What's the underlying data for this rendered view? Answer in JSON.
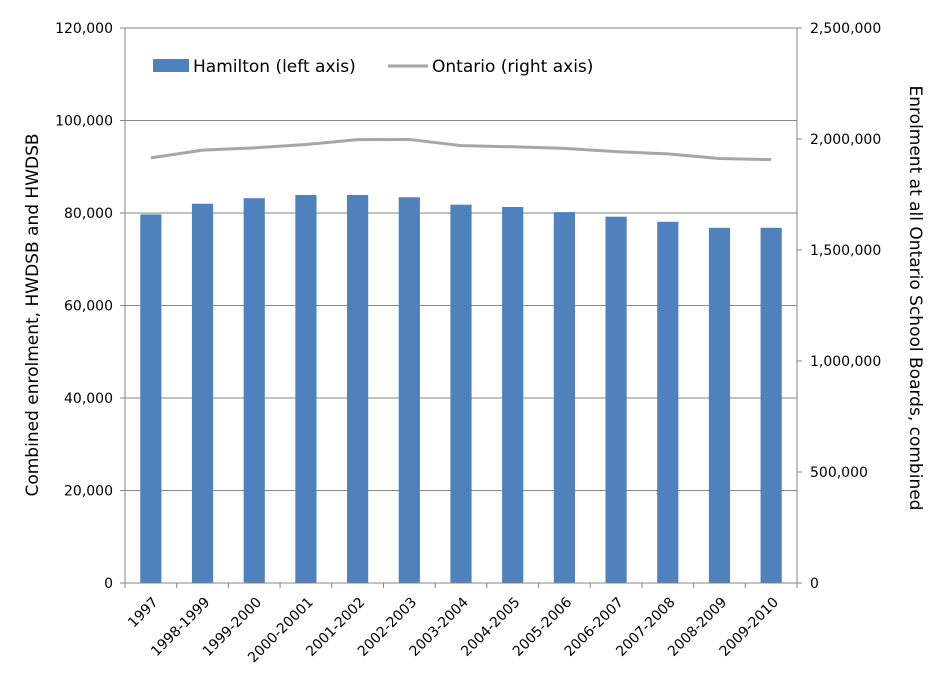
{
  "chart_data": {
    "type": "bar",
    "categories": [
      "1997",
      "1998-1999",
      "1999-2000",
      "2000-20001",
      "2001-2002",
      "2002-2003",
      "2003-2004",
      "2004-2005",
      "2005-2006",
      "2006-2007",
      "2007-2008",
      "2008-2009",
      "2009-2010"
    ],
    "series": [
      {
        "name": "Hamilton (left axis)",
        "type": "bar",
        "axis": "left",
        "color": "#4f81bd",
        "values": [
          79700,
          82000,
          83200,
          83900,
          83900,
          83400,
          81800,
          81300,
          80200,
          79200,
          78100,
          76800,
          76800
        ]
      },
      {
        "name": "Ontario (right axis)",
        "type": "line",
        "axis": "right",
        "color": "#a6a6a6",
        "values": [
          1915000,
          1950000,
          1960000,
          1975000,
          1997000,
          1998000,
          1970000,
          1965000,
          1958000,
          1943000,
          1933000,
          1912000,
          1907000
        ]
      }
    ],
    "ylabel": "Combined enrolment, HWDSB and HWDSB",
    "y2label": "Enrolment at all Ontario School Boards, combined",
    "ylim": [
      0,
      120000
    ],
    "y2lim": [
      0,
      2500000
    ],
    "yticks": [
      "0",
      "20,000",
      "40,000",
      "60,000",
      "80,000",
      "100,000",
      "120,000"
    ],
    "y2ticks": [
      "0",
      "500,000",
      "1,000,000",
      "1,500,000",
      "2,000,000",
      "2,500,000"
    ],
    "grid": true,
    "legend_position": "top-left"
  }
}
